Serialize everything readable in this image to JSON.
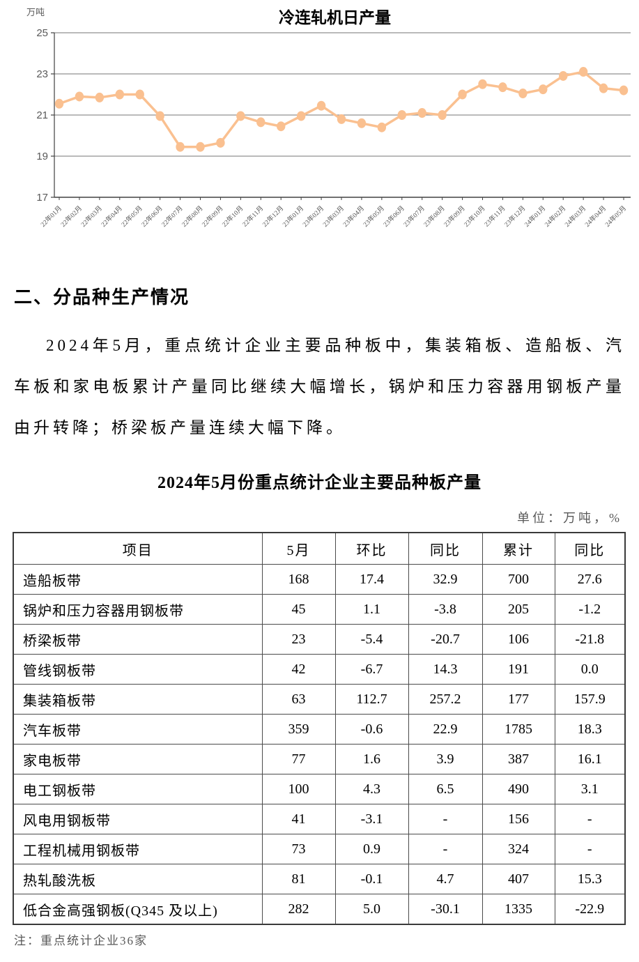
{
  "chart_data": {
    "type": "line",
    "title": "冷连轧机日产量",
    "ylabel": "万吨",
    "xlabel": "",
    "ylim": [
      17,
      25
    ],
    "yticks": [
      17,
      19,
      21,
      23,
      25
    ],
    "grid": true,
    "legend": "none",
    "line_color": "#FAC090",
    "grid_color": "#909090",
    "axis_color": "#404040",
    "axis_text_color": "#595959",
    "categories": [
      "22年01月",
      "22年02月",
      "22年03月",
      "22年04月",
      "22年05月",
      "22年06月",
      "22年07月",
      "22年08月",
      "22年09月",
      "22年10月",
      "22年11月",
      "22年12月",
      "23年01月",
      "23年02月",
      "23年03月",
      "23年04月",
      "23年05月",
      "23年06月",
      "23年07月",
      "23年08月",
      "23年09月",
      "23年10月",
      "23年11月",
      "23年12月",
      "24年01月",
      "24年02月",
      "24年03月",
      "24年04月",
      "24年05月"
    ],
    "values": [
      21.55,
      21.9,
      21.85,
      22.0,
      22.0,
      20.95,
      19.45,
      19.45,
      19.65,
      20.95,
      20.65,
      20.45,
      20.95,
      21.45,
      20.8,
      20.6,
      20.4,
      21.0,
      21.1,
      21.0,
      22.0,
      22.5,
      22.35,
      22.05,
      22.25,
      22.9,
      23.1,
      22.3,
      22.2
    ]
  },
  "section": {
    "heading": "二、分品种生产情况",
    "paragraph": "2024年5月，重点统计企业主要品种板中，集装箱板、造船板、汽车板和家电板累计产量同比继续大幅增长，锅炉和压力容器用钢板产量由升转降；桥梁板产量连续大幅下降。"
  },
  "table": {
    "title": "2024年5月份重点统计企业主要品种板产量",
    "unit_note": "单位：万吨，%",
    "headers": [
      "项目",
      "5月",
      "环比",
      "同比",
      "累计",
      "同比"
    ],
    "rows": [
      [
        "造船板带",
        "168",
        "17.4",
        "32.9",
        "700",
        "27.6"
      ],
      [
        "锅炉和压力容器用钢板带",
        "45",
        "1.1",
        "-3.8",
        "205",
        "-1.2"
      ],
      [
        "桥梁板带",
        "23",
        "-5.4",
        "-20.7",
        "106",
        "-21.8"
      ],
      [
        "管线钢板带",
        "42",
        "-6.7",
        "14.3",
        "191",
        "0.0"
      ],
      [
        "集装箱板带",
        "63",
        "112.7",
        "257.2",
        "177",
        "157.9"
      ],
      [
        "汽车板带",
        "359",
        "-0.6",
        "22.9",
        "1785",
        "18.3"
      ],
      [
        "家电板带",
        "77",
        "1.6",
        "3.9",
        "387",
        "16.1"
      ],
      [
        "电工钢板带",
        "100",
        "4.3",
        "6.5",
        "490",
        "3.1"
      ],
      [
        "风电用钢板带",
        "41",
        "-3.1",
        "-",
        "156",
        "-"
      ],
      [
        "工程机械用钢板带",
        "73",
        "0.9",
        "-",
        "324",
        "-"
      ],
      [
        "热轧酸洗板",
        "81",
        "-0.1",
        "4.7",
        "407",
        "15.3"
      ],
      [
        "低合金高强钢板(Q345 及以上)",
        "282",
        "5.0",
        "-30.1",
        "1335",
        "-22.9"
      ]
    ],
    "footnote": "注：重点统计企业36家"
  }
}
